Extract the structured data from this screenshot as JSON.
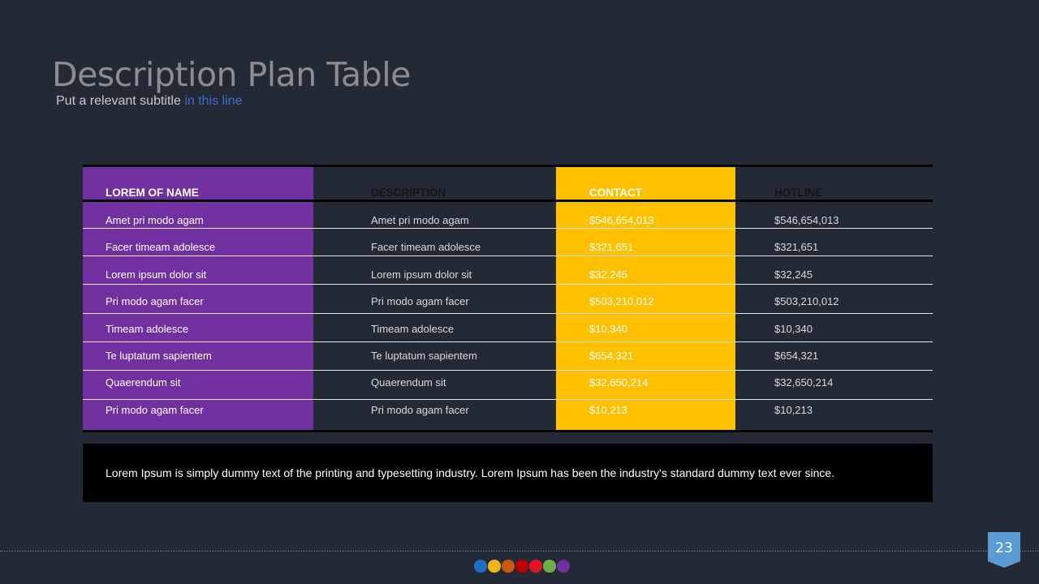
{
  "slide": {
    "title": "Description Plan Table",
    "subtitle_prefix": "Put a relevant subtitle ",
    "subtitle_accent": "in this line",
    "page_number": "23"
  },
  "table": {
    "headers": [
      "LOREM OF NAME",
      "DESCRIPTION",
      "CONTACT",
      "HOTLINE"
    ],
    "rows": [
      [
        "Amet pri modo agam",
        "Amet pri modo agam",
        "$546,654,013",
        "$546,654,013"
      ],
      [
        "Facer timeam adolesce",
        "Facer timeam adolesce",
        "$321,651",
        "$321,651"
      ],
      [
        "Lorem ipsum dolor sit",
        "Lorem ipsum dolor sit",
        "$32,245",
        "$32,245"
      ],
      [
        "Pri modo agam facer",
        "Pri modo agam facer",
        "$503,210,012",
        "$503,210,012"
      ],
      [
        "Timeam adolesce",
        "Timeam adolesce",
        "$10,340",
        "$10,340"
      ],
      [
        "Te luptatum sapientem",
        "Te luptatum sapientem",
        "$654,321",
        "$654,321"
      ],
      [
        "Quaerendum sit",
        "Quaerendum sit",
        "$32,650,214",
        "$32,650,214"
      ],
      [
        "Pri modo agam facer",
        "Pri modo agam facer",
        "$10,213",
        "$10,213"
      ]
    ],
    "column_colors": {
      "name": "#7030a0",
      "contact": "#ffc000"
    }
  },
  "note": {
    "text": "Lorem Ipsum is simply dummy text of the printing and typesetting industry. Lorem Ipsum has been the industry's standard dummy text ever since."
  },
  "footer": {
    "dot_colors": [
      "#1f6fc5",
      "#f1b51c",
      "#c55a11",
      "#c00000",
      "#e81123",
      "#70ad47",
      "#7030a0"
    ],
    "badge_color": "#5b9bd5"
  }
}
